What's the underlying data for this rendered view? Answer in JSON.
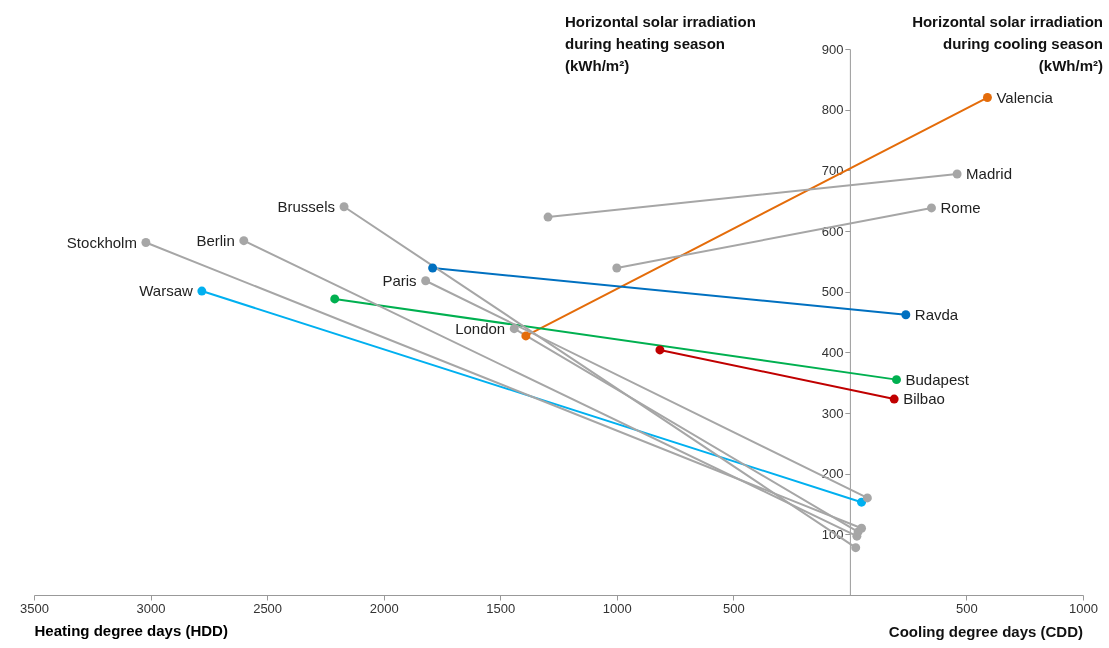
{
  "chart_data": {
    "type": "line",
    "xlabel": "Heating degree days (HDD)",
    "ylabel": "Horizontal solar irradiation during heating season (kWh/m²)",
    "y2label": "Horizontal solar irradiation during cooling season (kWh/m²)",
    "annotations": [
      "Cooling degree days (CDD)"
    ],
    "xlim": [
      -3500,
      1000
    ],
    "xticks": [
      {
        "value": -3500,
        "label": "3500"
      },
      {
        "value": -3000,
        "label": "3000"
      },
      {
        "value": -2500,
        "label": "2500"
      },
      {
        "value": -2000,
        "label": "2000"
      },
      {
        "value": -1500,
        "label": "1500"
      },
      {
        "value": -1000,
        "label": "1000"
      },
      {
        "value": -500,
        "label": "500"
      },
      {
        "value": 500,
        "label": "500"
      },
      {
        "value": 1000,
        "label": "1000"
      }
    ],
    "ylim": [
      0,
      900
    ],
    "yticks": [
      100,
      200,
      300,
      400,
      500,
      600,
      700,
      800,
      900
    ],
    "grid": false,
    "marker": "circle",
    "line_style": "solid",
    "series": [
      {
        "name": "Valencia",
        "color": "#e46c0a",
        "x": [
          -1390,
          590
        ],
        "values": [
          427,
          820
        ]
      },
      {
        "name": "Madrid",
        "color": "#a6a6a6",
        "x": [
          -1295,
          460
        ],
        "values": [
          623,
          694
        ]
      },
      {
        "name": "Rome",
        "color": "#a6a6a6",
        "x": [
          -1000,
          350
        ],
        "values": [
          539,
          638
        ]
      },
      {
        "name": "Ravda",
        "color": "#0070c0",
        "x": [
          -1790,
          240
        ],
        "values": [
          539,
          462
        ]
      },
      {
        "name": "Budapest",
        "color": "#00b050",
        "x": [
          -2210,
          200
        ],
        "values": [
          488,
          355
        ]
      },
      {
        "name": "Bilbao",
        "color": "#c00000",
        "x": [
          -815,
          190
        ],
        "values": [
          404,
          323
        ]
      },
      {
        "name": "Warsaw",
        "color": "#00b0f0",
        "x": [
          -2780,
          50
        ],
        "values": [
          501,
          153
        ]
      },
      {
        "name": "Stockholm",
        "color": "#a6a6a6",
        "x": [
          -3020,
          50
        ],
        "values": [
          581,
          110
        ]
      },
      {
        "name": "Berlin",
        "color": "#a6a6a6",
        "x": [
          -2600,
          30
        ],
        "values": [
          584,
          97
        ]
      },
      {
        "name": "Brussels",
        "color": "#a6a6a6",
        "x": [
          -2170,
          25
        ],
        "values": [
          640,
          78
        ]
      },
      {
        "name": "Paris",
        "color": "#a6a6a6",
        "x": [
          -1820,
          75
        ],
        "values": [
          518,
          160
        ]
      },
      {
        "name": "London",
        "color": "#a6a6a6",
        "x": [
          -1440,
          35
        ],
        "values": [
          439,
          104
        ]
      }
    ]
  }
}
